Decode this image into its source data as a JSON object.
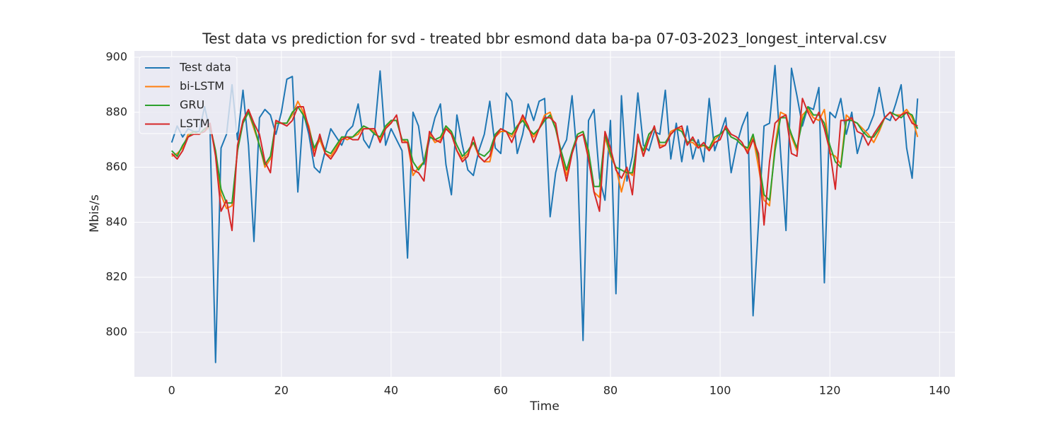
{
  "chart_data": {
    "type": "line",
    "title": "Test data vs prediction for svd - treated bbr esmond data ba-pa 07-03-2023_longest_interval.csv",
    "x_label": "Time",
    "y_label": "Mbis/s",
    "x": [
      0,
      1,
      2,
      3,
      4,
      5,
      6,
      7,
      8,
      9,
      10,
      11,
      12,
      13,
      14,
      15,
      16,
      17,
      18,
      19,
      20,
      21,
      22,
      23,
      24,
      25,
      26,
      27,
      28,
      29,
      30,
      31,
      32,
      33,
      34,
      35,
      36,
      37,
      38,
      39,
      40,
      41,
      42,
      43,
      44,
      45,
      46,
      47,
      48,
      49,
      50,
      51,
      52,
      53,
      54,
      55,
      56,
      57,
      58,
      59,
      60,
      61,
      62,
      63,
      64,
      65,
      66,
      67,
      68,
      69,
      70,
      71,
      72,
      73,
      74,
      75,
      76,
      77,
      78,
      79,
      80,
      81,
      82,
      83,
      84,
      85,
      86,
      87,
      88,
      89,
      90,
      91,
      92,
      93,
      94,
      95,
      96,
      97,
      98,
      99,
      100,
      101,
      102,
      103,
      104,
      105,
      106,
      107,
      108,
      109,
      110,
      111,
      112,
      113,
      114,
      115,
      116,
      117,
      118,
      119,
      120,
      121,
      122,
      123,
      124,
      125,
      126,
      127,
      128,
      129,
      130,
      131,
      132,
      133,
      134,
      135,
      136
    ],
    "series": [
      {
        "name": "Test data",
        "color": "#1f77b4",
        "values": [
          869,
          875,
          871,
          874,
          873,
          873,
          882,
          873,
          789,
          867,
          872,
          890,
          870,
          888,
          868,
          833,
          878,
          881,
          879,
          872,
          880,
          892,
          893,
          851,
          880,
          872,
          860,
          858,
          866,
          874,
          871,
          868,
          873,
          875,
          883,
          870,
          867,
          873,
          895,
          868,
          874,
          870,
          866,
          827,
          880,
          875,
          861,
          870,
          878,
          883,
          861,
          850,
          879,
          868,
          859,
          857,
          866,
          872,
          884,
          867,
          865,
          887,
          884,
          865,
          872,
          883,
          877,
          884,
          885,
          842,
          858,
          866,
          870,
          886,
          862,
          797,
          877,
          881,
          856,
          848,
          877,
          814,
          886,
          855,
          864,
          887,
          868,
          866,
          873,
          872,
          888,
          863,
          876,
          862,
          875,
          863,
          870,
          862,
          885,
          866,
          872,
          878,
          858,
          868,
          875,
          880,
          806,
          840,
          875,
          876,
          897,
          866,
          837,
          896,
          886,
          875,
          882,
          881,
          889,
          818,
          880,
          878,
          885,
          872,
          880,
          865,
          872,
          874,
          879,
          889,
          878,
          877,
          883,
          890,
          867,
          856,
          885
        ]
      },
      {
        "name": "bi-LSTM",
        "color": "#ff7f0e",
        "values": [
          864,
          865,
          867,
          872,
          873,
          872,
          873,
          875,
          865,
          850,
          845,
          846,
          866,
          877,
          880,
          874,
          868,
          860,
          863,
          877,
          876,
          876,
          879,
          884,
          880,
          875,
          866,
          870,
          865,
          864,
          867,
          871,
          870,
          871,
          872,
          875,
          874,
          873,
          870,
          874,
          877,
          877,
          870,
          869,
          857,
          860,
          862,
          872,
          869,
          870,
          875,
          872,
          866,
          863,
          865,
          869,
          864,
          862,
          862,
          871,
          873,
          873,
          871,
          875,
          878,
          874,
          871,
          874,
          879,
          880,
          874,
          865,
          857,
          865,
          872,
          873,
          865,
          851,
          849,
          871,
          864,
          860,
          851,
          859,
          857,
          871,
          864,
          872,
          874,
          868,
          868,
          873,
          874,
          874,
          869,
          869,
          867,
          868,
          866,
          870,
          872,
          874,
          871,
          870,
          868,
          866,
          871,
          860,
          848,
          846,
          868,
          880,
          879,
          871,
          866,
          879,
          881,
          878,
          877,
          881,
          865,
          864,
          861,
          879,
          877,
          876,
          874,
          872,
          869,
          873,
          878,
          880,
          879,
          879,
          881,
          878,
          871
        ]
      },
      {
        "name": "GRU",
        "color": "#2ca02c",
        "values": [
          866,
          864,
          868,
          871,
          873,
          872,
          874,
          875,
          866,
          852,
          847,
          847,
          866,
          876,
          880,
          875,
          868,
          861,
          864,
          876,
          876,
          876,
          880,
          882,
          879,
          874,
          867,
          871,
          866,
          865,
          868,
          871,
          871,
          871,
          873,
          875,
          874,
          872,
          871,
          875,
          877,
          877,
          870,
          870,
          862,
          859,
          862,
          871,
          870,
          871,
          875,
          873,
          868,
          864,
          866,
          869,
          865,
          864,
          866,
          872,
          874,
          873,
          872,
          875,
          877,
          874,
          872,
          874,
          877,
          879,
          874,
          866,
          859,
          866,
          872,
          873,
          866,
          853,
          853,
          872,
          865,
          860,
          859,
          858,
          858,
          870,
          866,
          872,
          874,
          869,
          869,
          872,
          874,
          873,
          869,
          870,
          868,
          868,
          867,
          871,
          872,
          874,
          871,
          870,
          868,
          867,
          872,
          863,
          850,
          848,
          866,
          878,
          878,
          872,
          867,
          877,
          882,
          879,
          879,
          876,
          868,
          862,
          860,
          877,
          877,
          876,
          873,
          871,
          871,
          874,
          878,
          880,
          879,
          878,
          880,
          879,
          874
        ]
      },
      {
        "name": "LSTM",
        "color": "#d62728",
        "values": [
          865,
          863,
          866,
          871,
          872,
          872,
          873,
          876,
          864,
          844,
          848,
          837,
          868,
          877,
          881,
          876,
          872,
          862,
          858,
          877,
          876,
          875,
          877,
          882,
          882,
          874,
          864,
          872,
          865,
          863,
          866,
          870,
          871,
          870,
          870,
          874,
          874,
          874,
          869,
          874,
          876,
          879,
          869,
          869,
          859,
          858,
          855,
          873,
          870,
          869,
          874,
          872,
          866,
          862,
          864,
          871,
          864,
          862,
          864,
          871,
          874,
          873,
          869,
          874,
          879,
          875,
          869,
          874,
          878,
          878,
          876,
          864,
          855,
          865,
          871,
          872,
          863,
          851,
          844,
          873,
          867,
          859,
          856,
          860,
          850,
          872,
          864,
          870,
          875,
          867,
          868,
          872,
          874,
          875,
          868,
          871,
          867,
          869,
          866,
          869,
          870,
          875,
          872,
          871,
          869,
          865,
          870,
          865,
          839,
          862,
          876,
          878,
          879,
          865,
          864,
          885,
          880,
          876,
          880,
          874,
          866,
          852,
          877,
          877,
          878,
          873,
          872,
          868,
          872,
          875,
          878,
          880,
          877,
          879,
          880,
          876,
          875
        ]
      }
    ],
    "xlim": [
      -6.8,
      142.8
    ],
    "xticks": [
      0,
      20,
      40,
      60,
      80,
      100,
      120,
      140
    ],
    "ylim": [
      783.8,
      902.3
    ],
    "yticks": [
      800,
      820,
      840,
      860,
      880,
      900
    ],
    "grid": true,
    "legend": "upper left"
  }
}
